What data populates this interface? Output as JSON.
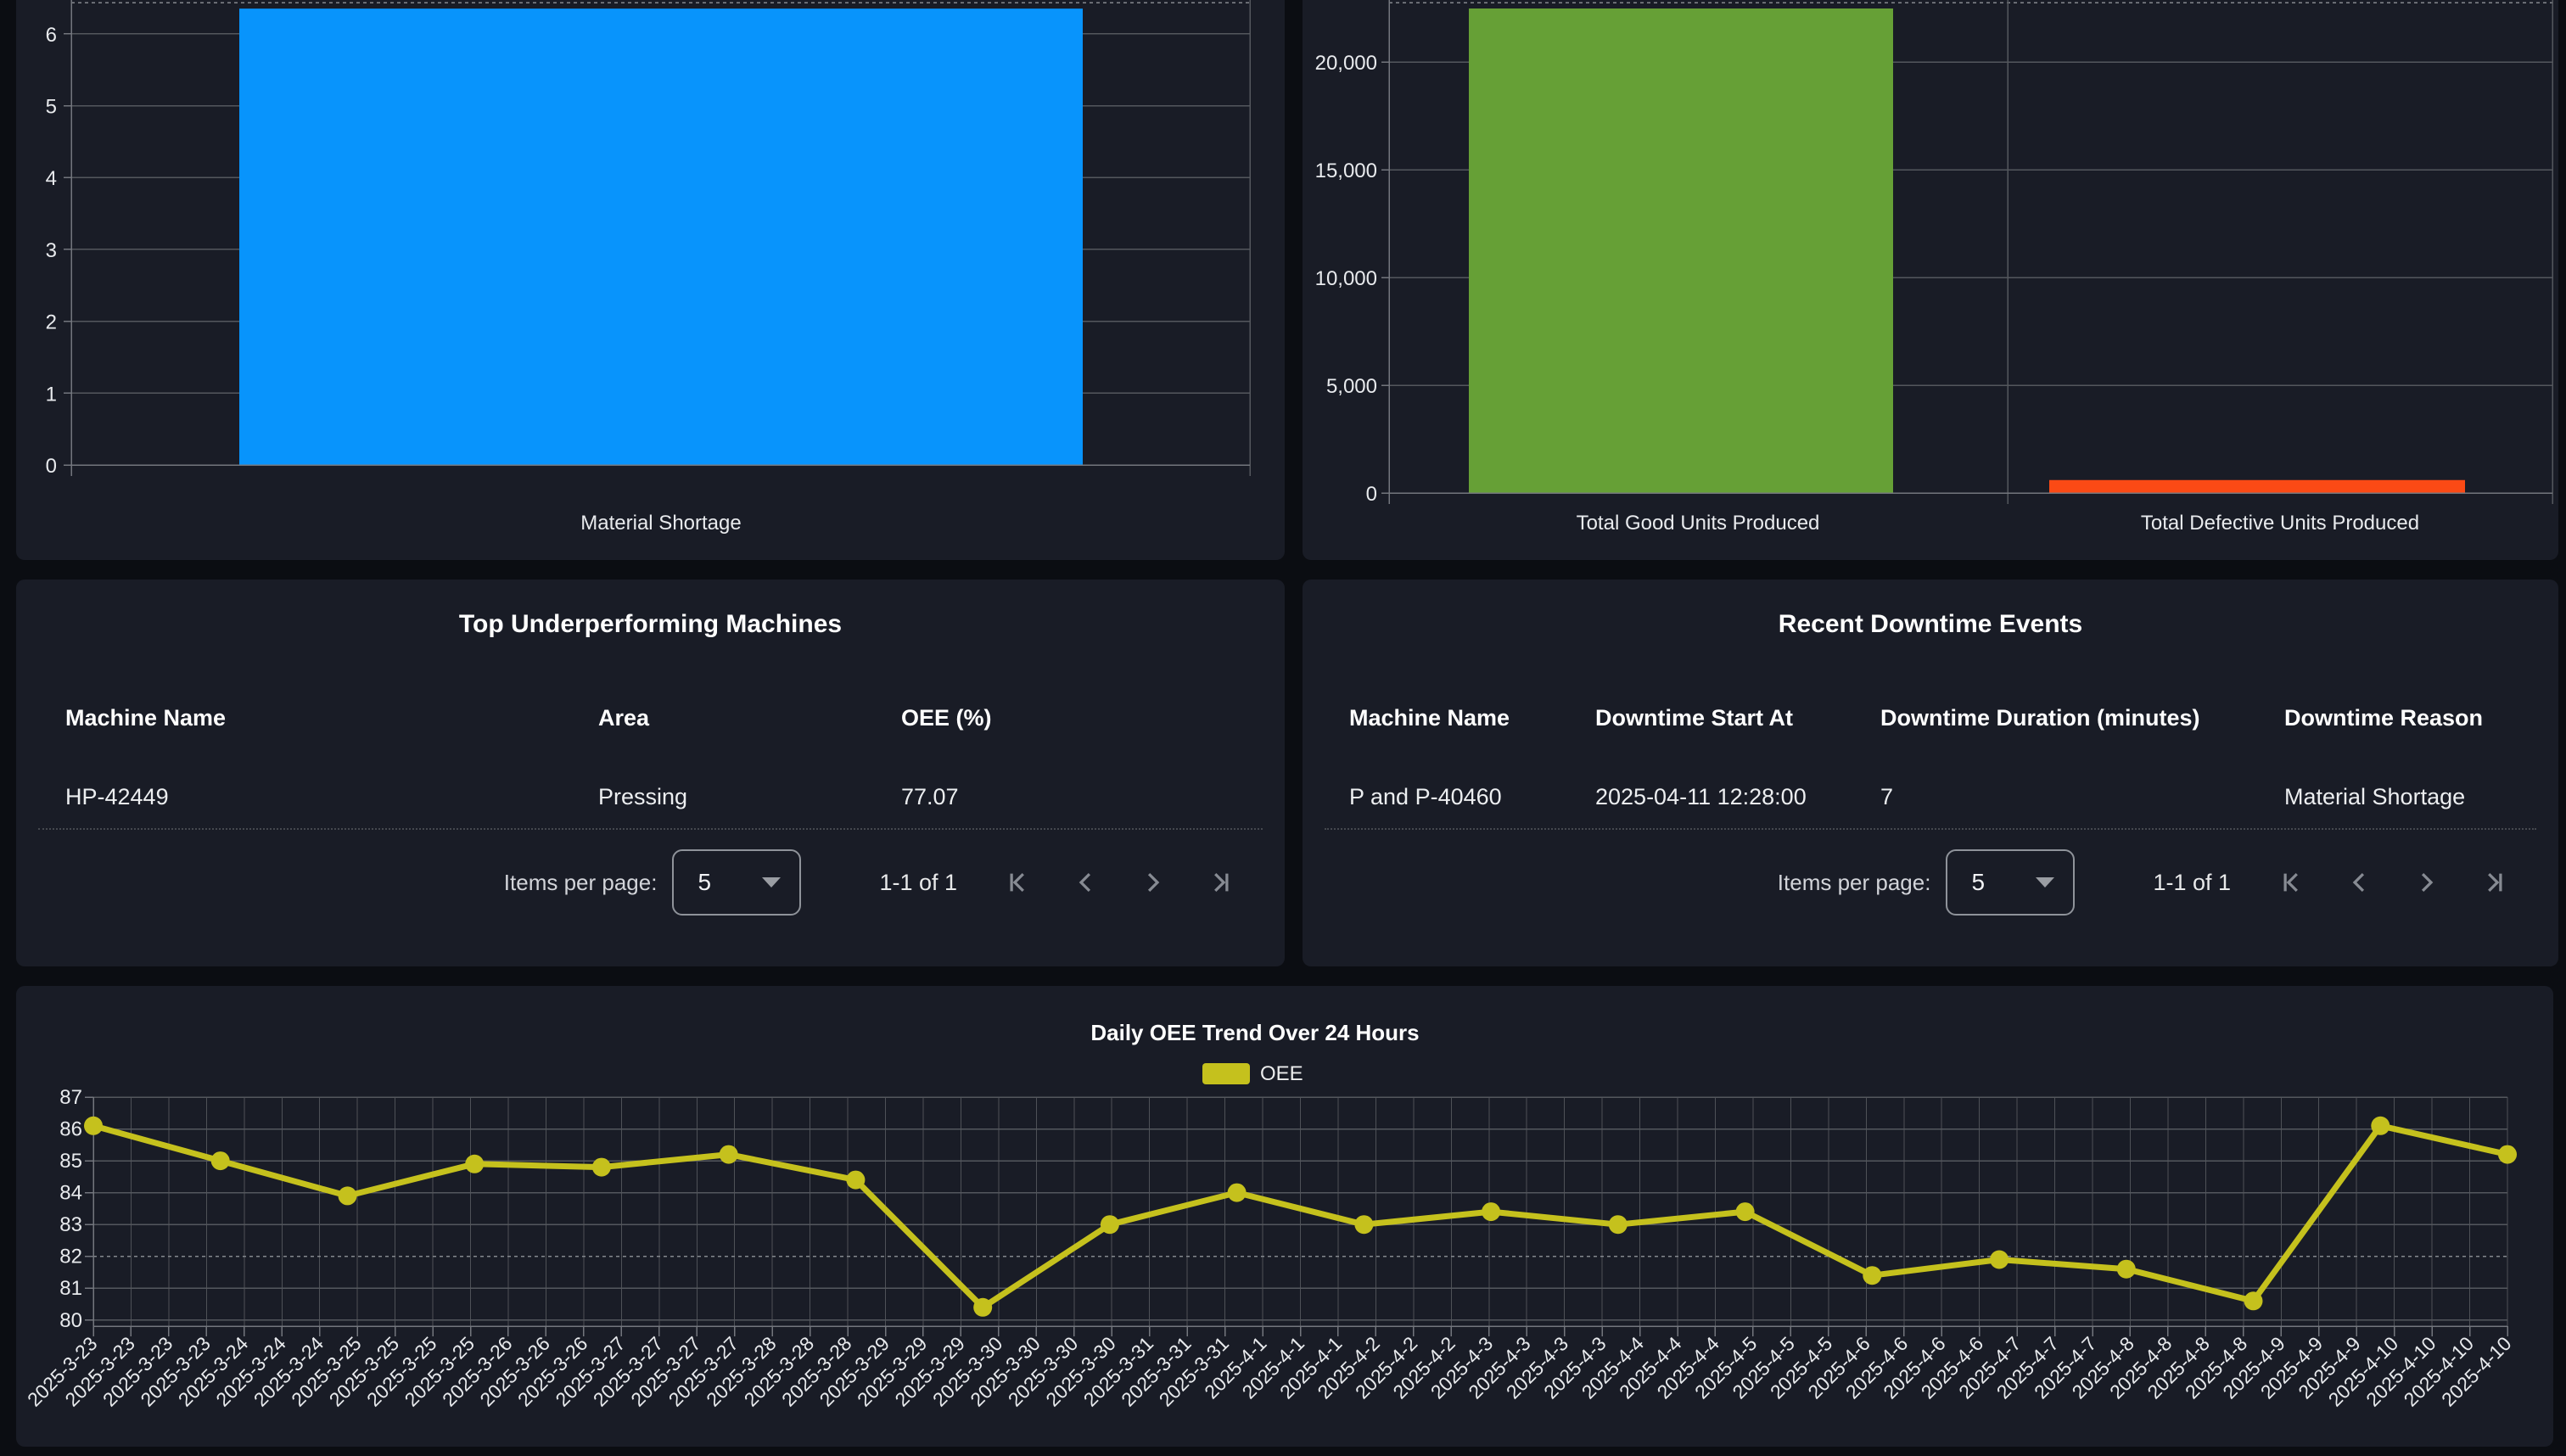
{
  "colors": {
    "page_bg": "#0b0d12",
    "card_bg": "#191c26",
    "grid": "#54575d",
    "grid_dashed": "#84878d",
    "axis": "#73767d",
    "tick_text": "#e8eaed",
    "accent_blue": "#0894fc",
    "accent_green": "#66a036",
    "accent_red": "#fb4a15",
    "accent_yellow": "#c5c11d"
  },
  "chart_data": [
    {
      "id": "material_shortage_bar",
      "type": "bar",
      "title": "",
      "categories": [
        "Material Shortage"
      ],
      "values": [
        6.35
      ],
      "ylim": [
        0,
        6.45
      ],
      "yticks": [
        0,
        1,
        2,
        3,
        4,
        5,
        6
      ],
      "ytick_labels": [
        "0",
        "1",
        "2",
        "3",
        "4",
        "5",
        "6"
      ],
      "bar_colors": [
        "#0894fc"
      ],
      "grid": true,
      "note": "top of bar cropped by viewport top edge"
    },
    {
      "id": "units_produced_bar",
      "type": "bar",
      "title": "",
      "categories": [
        "Total Good Units Produced",
        "Total Defective Units Produced"
      ],
      "values": [
        22500,
        600
      ],
      "ylim": [
        0,
        22750
      ],
      "yticks": [
        0,
        5000,
        10000,
        15000,
        20000
      ],
      "ytick_labels": [
        "0",
        "5,000",
        "10,000",
        "15,000",
        "20,000"
      ],
      "bar_colors": [
        "#66a036",
        "#fb4a15"
      ],
      "grid": true
    },
    {
      "id": "oee_trend_line",
      "type": "line",
      "title": "Daily OEE Trend Over 24 Hours",
      "legend": [
        "OEE"
      ],
      "legend_position": "top-center",
      "series_color": "#c5c11d",
      "ylim": [
        80,
        87
      ],
      "yticks": [
        80,
        81,
        82,
        83,
        84,
        85,
        86,
        87
      ],
      "threshold_dashed_y": 82,
      "values": [
        86.1,
        85.0,
        83.9,
        84.9,
        84.8,
        85.2,
        84.4,
        80.4,
        83.0,
        84.0,
        83.0,
        83.4,
        83.0,
        83.4,
        81.4,
        81.9,
        81.6,
        80.6,
        86.1,
        85.2
      ],
      "x_tick_labels": [
        "2025-3-23",
        "2025-3-23",
        "2025-3-23",
        "2025-3-23",
        "2025-3-24",
        "2025-3-24",
        "2025-3-24",
        "2025-3-25",
        "2025-3-25",
        "2025-3-25",
        "2025-3-25",
        "2025-3-26",
        "2025-3-26",
        "2025-3-26",
        "2025-3-27",
        "2025-3-27",
        "2025-3-27",
        "2025-3-27",
        "2025-3-28",
        "2025-3-28",
        "2025-3-28",
        "2025-3-29",
        "2025-3-29",
        "2025-3-29",
        "2025-3-30",
        "2025-3-30",
        "2025-3-30",
        "2025-3-30",
        "2025-3-31",
        "2025-3-31",
        "2025-3-31",
        "2025-4-1",
        "2025-4-1",
        "2025-4-1",
        "2025-4-2",
        "2025-4-2",
        "2025-4-2",
        "2025-4-3",
        "2025-4-3",
        "2025-4-3",
        "2025-4-3",
        "2025-4-4",
        "2025-4-4",
        "2025-4-4",
        "2025-4-5",
        "2025-4-5",
        "2025-4-5",
        "2025-4-6",
        "2025-4-6",
        "2025-4-6",
        "2025-4-6",
        "2025-4-7",
        "2025-4-7",
        "2025-4-7",
        "2025-4-8",
        "2025-4-8",
        "2025-4-8",
        "2025-4-8",
        "2025-4-9",
        "2025-4-9",
        "2025-4-9",
        "2025-4-10",
        "2025-4-10",
        "2025-4-10",
        "2025-4-10"
      ]
    }
  ],
  "tables": {
    "underperforming": {
      "title": "Top Underperforming Machines",
      "headers": [
        "Machine Name",
        "Area",
        "OEE (%)"
      ],
      "rows": [
        [
          "HP-42449",
          "Pressing",
          "77.07"
        ]
      ]
    },
    "downtime": {
      "title": "Recent Downtime Events",
      "headers": [
        "Machine Name",
        "Downtime Start At",
        "Downtime Duration (minutes)",
        "Downtime Reason"
      ],
      "rows": [
        [
          "P and P-40460",
          "2025-04-11 12:28:00",
          "7",
          "Material Shortage"
        ]
      ]
    }
  },
  "paginator": {
    "items_per_page_label": "Items per page:",
    "page_size": "5",
    "range_label": "1-1 of 1"
  }
}
